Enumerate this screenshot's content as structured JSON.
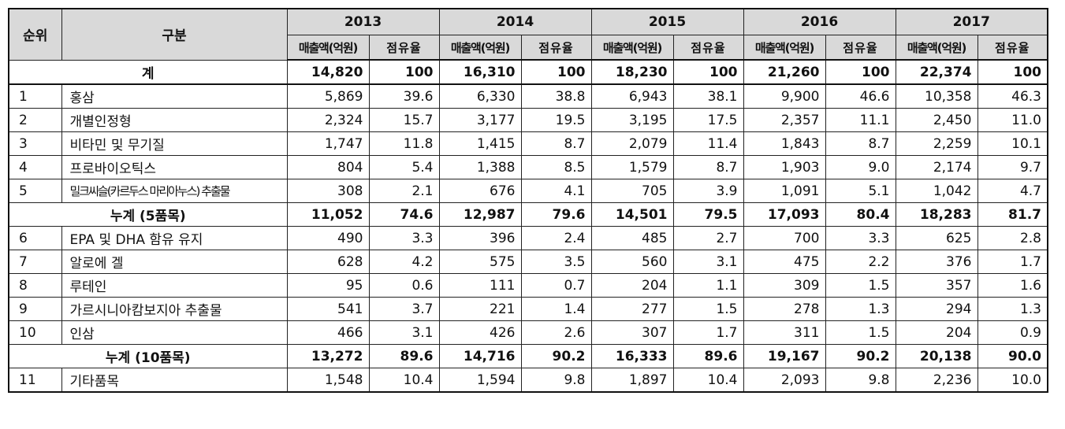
{
  "headers": {
    "rank": "순위",
    "category": "구분",
    "years": [
      "2013",
      "2014",
      "2015",
      "2016",
      "2017"
    ],
    "sales": "매출액(억원)",
    "share": "점유율"
  },
  "rows": [
    {
      "rank": "",
      "category": "계",
      "type": "total",
      "values": [
        [
          "14,820",
          "100"
        ],
        [
          "16,310",
          "100"
        ],
        [
          "18,230",
          "100"
        ],
        [
          "21,260",
          "100"
        ],
        [
          "22,374",
          "100"
        ]
      ]
    },
    {
      "rank": "1",
      "category": "홍삼",
      "type": "item",
      "values": [
        [
          "5,869",
          "39.6"
        ],
        [
          "6,330",
          "38.8"
        ],
        [
          "6,943",
          "38.1"
        ],
        [
          "9,900",
          "46.6"
        ],
        [
          "10,358",
          "46.3"
        ]
      ]
    },
    {
      "rank": "2",
      "category": "개별인정형",
      "type": "item",
      "values": [
        [
          "2,324",
          "15.7"
        ],
        [
          "3,177",
          "19.5"
        ],
        [
          "3,195",
          "17.5"
        ],
        [
          "2,357",
          "11.1"
        ],
        [
          "2,450",
          "11.0"
        ]
      ]
    },
    {
      "rank": "3",
      "category": "비타민 및 무기질",
      "type": "item",
      "values": [
        [
          "1,747",
          "11.8"
        ],
        [
          "1,415",
          "8.7"
        ],
        [
          "2,079",
          "11.4"
        ],
        [
          "1,843",
          "8.7"
        ],
        [
          "2,259",
          "10.1"
        ]
      ]
    },
    {
      "rank": "4",
      "category": "프로바이오틱스",
      "type": "item",
      "values": [
        [
          "804",
          "5.4"
        ],
        [
          "1,388",
          "8.5"
        ],
        [
          "1,579",
          "8.7"
        ],
        [
          "1,903",
          "9.0"
        ],
        [
          "2,174",
          "9.7"
        ]
      ]
    },
    {
      "rank": "5",
      "category": "밀크씨슬(카르두스 마리아누스) 추출물",
      "type": "item",
      "tight": true,
      "values": [
        [
          "308",
          "2.1"
        ],
        [
          "676",
          "4.1"
        ],
        [
          "705",
          "3.9"
        ],
        [
          "1,091",
          "5.1"
        ],
        [
          "1,042",
          "4.7"
        ]
      ]
    },
    {
      "rank": "",
      "category": "누계 (5품목)",
      "type": "total",
      "values": [
        [
          "11,052",
          "74.6"
        ],
        [
          "12,987",
          "79.6"
        ],
        [
          "14,501",
          "79.5"
        ],
        [
          "17,093",
          "80.4"
        ],
        [
          "18,283",
          "81.7"
        ]
      ]
    },
    {
      "rank": "6",
      "category": "EPA 및 DHA 함유 유지",
      "type": "item",
      "values": [
        [
          "490",
          "3.3"
        ],
        [
          "396",
          "2.4"
        ],
        [
          "485",
          "2.7"
        ],
        [
          "700",
          "3.3"
        ],
        [
          "625",
          "2.8"
        ]
      ]
    },
    {
      "rank": "7",
      "category": "알로에 겔",
      "type": "item",
      "values": [
        [
          "628",
          "4.2"
        ],
        [
          "575",
          "3.5"
        ],
        [
          "560",
          "3.1"
        ],
        [
          "475",
          "2.2"
        ],
        [
          "376",
          "1.7"
        ]
      ]
    },
    {
      "rank": "8",
      "category": "루테인",
      "type": "item",
      "values": [
        [
          "95",
          "0.6"
        ],
        [
          "111",
          "0.7"
        ],
        [
          "204",
          "1.1"
        ],
        [
          "309",
          "1.5"
        ],
        [
          "357",
          "1.6"
        ]
      ]
    },
    {
      "rank": "9",
      "category": "가르시니아캄보지아 추출물",
      "type": "item",
      "values": [
        [
          "541",
          "3.7"
        ],
        [
          "221",
          "1.4"
        ],
        [
          "277",
          "1.5"
        ],
        [
          "278",
          "1.3"
        ],
        [
          "294",
          "1.3"
        ]
      ]
    },
    {
      "rank": "10",
      "category": "인삼",
      "type": "item",
      "values": [
        [
          "466",
          "3.1"
        ],
        [
          "426",
          "2.6"
        ],
        [
          "307",
          "1.7"
        ],
        [
          "311",
          "1.5"
        ],
        [
          "204",
          "0.9"
        ]
      ]
    },
    {
      "rank": "",
      "category": "누계 (10품목)",
      "type": "total",
      "values": [
        [
          "13,272",
          "89.6"
        ],
        [
          "14,716",
          "90.2"
        ],
        [
          "16,333",
          "89.6"
        ],
        [
          "19,167",
          "90.2"
        ],
        [
          "20,138",
          "90.0"
        ]
      ]
    },
    {
      "rank": "11",
      "category": "기타품목",
      "type": "item",
      "values": [
        [
          "1,548",
          "10.4"
        ],
        [
          "1,594",
          "9.8"
        ],
        [
          "1,897",
          "10.4"
        ],
        [
          "2,093",
          "9.8"
        ],
        [
          "2,236",
          "10.0"
        ]
      ]
    }
  ]
}
